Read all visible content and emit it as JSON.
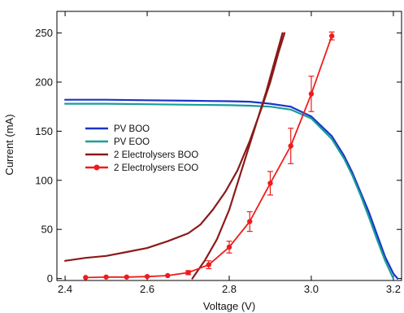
{
  "chart_data": {
    "type": "line",
    "xlabel": "Voltage (V)",
    "ylabel": "Current (mA)",
    "xlim": [
      2.38,
      3.22
    ],
    "ylim": [
      -2,
      272
    ],
    "x_ticks": [
      "2.4",
      "2.6",
      "2.8",
      "3.0",
      "3.2"
    ],
    "y_ticks": [
      "0",
      "50",
      "100",
      "150",
      "200",
      "250"
    ],
    "grid": false,
    "legend_position": "left",
    "series": [
      {
        "name": "PV BOO",
        "color": "#1a33cc",
        "style": "line",
        "x": [
          2.4,
          2.5,
          2.6,
          2.7,
          2.8,
          2.85,
          2.9,
          2.95,
          3.0,
          3.05,
          3.08,
          3.1,
          3.12,
          3.14,
          3.16,
          3.18,
          3.2,
          3.21
        ],
        "y": [
          182,
          182,
          181.5,
          181,
          180.5,
          180,
          178,
          175,
          165,
          145,
          125,
          108,
          88,
          68,
          45,
          22,
          5,
          0
        ]
      },
      {
        "name": "PV EOO",
        "color": "#1a9e96",
        "style": "line",
        "x": [
          2.4,
          2.5,
          2.6,
          2.7,
          2.8,
          2.85,
          2.9,
          2.95,
          3.0,
          3.05,
          3.08,
          3.1,
          3.12,
          3.14,
          3.16,
          3.18,
          3.2
        ],
        "y": [
          178,
          178,
          177.5,
          177,
          176.5,
          176,
          175,
          172,
          163,
          142,
          122,
          105,
          85,
          63,
          40,
          18,
          0
        ]
      },
      {
        "name": "2 Electrolysers BOO",
        "color": "#8b1a1a",
        "style": "line",
        "x": [
          2.4,
          2.45,
          2.5,
          2.55,
          2.6,
          2.65,
          2.7,
          2.73,
          2.76,
          2.79,
          2.82,
          2.85,
          2.88,
          2.9,
          2.92,
          2.935
        ],
        "y": [
          18,
          21,
          23,
          27,
          31,
          38,
          46,
          55,
          70,
          88,
          110,
          140,
          175,
          200,
          230,
          250
        ]
      },
      {
        "name": "",
        "color": "#8b1a1a",
        "style": "line",
        "x": [
          2.71,
          2.74,
          2.77,
          2.8,
          2.83,
          2.86,
          2.89,
          2.91,
          2.93
        ],
        "y": [
          0,
          18,
          40,
          70,
          110,
          150,
          190,
          220,
          250
        ]
      },
      {
        "name": "2 Electrolysers EOO",
        "color": "#ee1c1c",
        "style": "line-marker",
        "x": [
          2.45,
          2.5,
          2.55,
          2.6,
          2.65,
          2.7,
          2.75,
          2.8,
          2.85,
          2.9,
          2.95,
          3.0,
          3.05
        ],
        "y": [
          1,
          1.5,
          1.5,
          2,
          3,
          6,
          14,
          32,
          58,
          97,
          135,
          188,
          247
        ],
        "err": [
          0,
          0,
          0,
          0,
          0,
          2,
          4,
          6,
          10,
          12,
          18,
          18,
          4
        ]
      }
    ]
  }
}
